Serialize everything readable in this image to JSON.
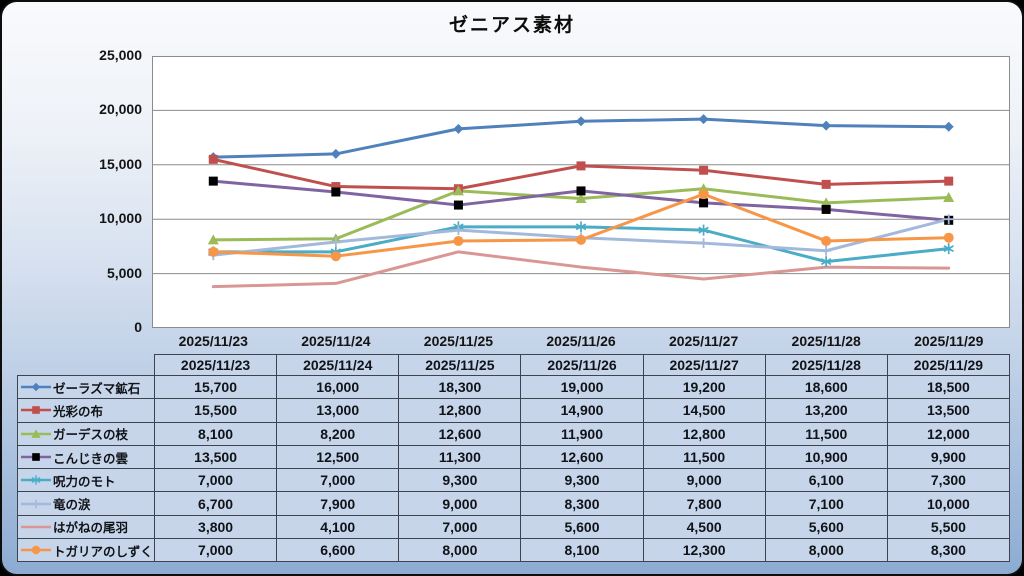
{
  "title": "ゼニアス素材",
  "chart_data": {
    "type": "line",
    "title": "ゼニアス素材",
    "x": [
      "2025/11/23",
      "2025/11/24",
      "2025/11/25",
      "2025/11/26",
      "2025/11/27",
      "2025/11/28",
      "2025/11/29"
    ],
    "series": [
      {
        "name": "ゼーラズマ鉱石",
        "color": "#4F81BD",
        "marker": "diamond",
        "marker_color": "#4F81BD",
        "values": [
          15700,
          16000,
          18300,
          19000,
          19200,
          18600,
          18500
        ]
      },
      {
        "name": "光彩の布",
        "color": "#C0504D",
        "marker": "square",
        "marker_color": "#C0504D",
        "values": [
          15500,
          13000,
          12800,
          14900,
          14500,
          13200,
          13500
        ]
      },
      {
        "name": "ガーデスの枝",
        "color": "#9BBB59",
        "marker": "triangle",
        "marker_color": "#9BBB59",
        "values": [
          8100,
          8200,
          12600,
          11900,
          12800,
          11500,
          12000
        ]
      },
      {
        "name": "こんじきの雲",
        "color": "#8064A2",
        "marker": "square",
        "marker_color": "#000000",
        "values": [
          13500,
          12500,
          11300,
          12600,
          11500,
          10900,
          9900
        ]
      },
      {
        "name": "呪力のモト",
        "color": "#4BACC6",
        "marker": "asterisk",
        "marker_color": "#4BACC6",
        "values": [
          7000,
          7000,
          9300,
          9300,
          9000,
          6100,
          7300
        ]
      },
      {
        "name": "竜の涙",
        "color": "#A3B9DC",
        "marker": "plus",
        "marker_color": "#A3B9DC",
        "values": [
          6700,
          7900,
          9000,
          8300,
          7800,
          7100,
          10000
        ]
      },
      {
        "name": "はがねの尾羽",
        "color": "#D99694",
        "marker": "none",
        "marker_color": "#D99694",
        "values": [
          3800,
          4100,
          7000,
          5600,
          4500,
          5600,
          5500
        ]
      },
      {
        "name": "トガリアのしずく",
        "color": "#F79646",
        "marker": "circle",
        "marker_color": "#F79646",
        "values": [
          7000,
          6600,
          8000,
          8100,
          12300,
          8000,
          8300
        ]
      }
    ],
    "ylim": [
      0,
      25000
    ],
    "yticks": [
      0,
      5000,
      10000,
      15000,
      20000,
      25000
    ],
    "ytick_labels": [
      "0",
      "5,000",
      "10,000",
      "15,000",
      "20,000",
      "25,000"
    ],
    "grid": true,
    "gridline_color": "#8c8c8c",
    "plot_background": "#ffffff",
    "legend_position": "table-first-column"
  }
}
